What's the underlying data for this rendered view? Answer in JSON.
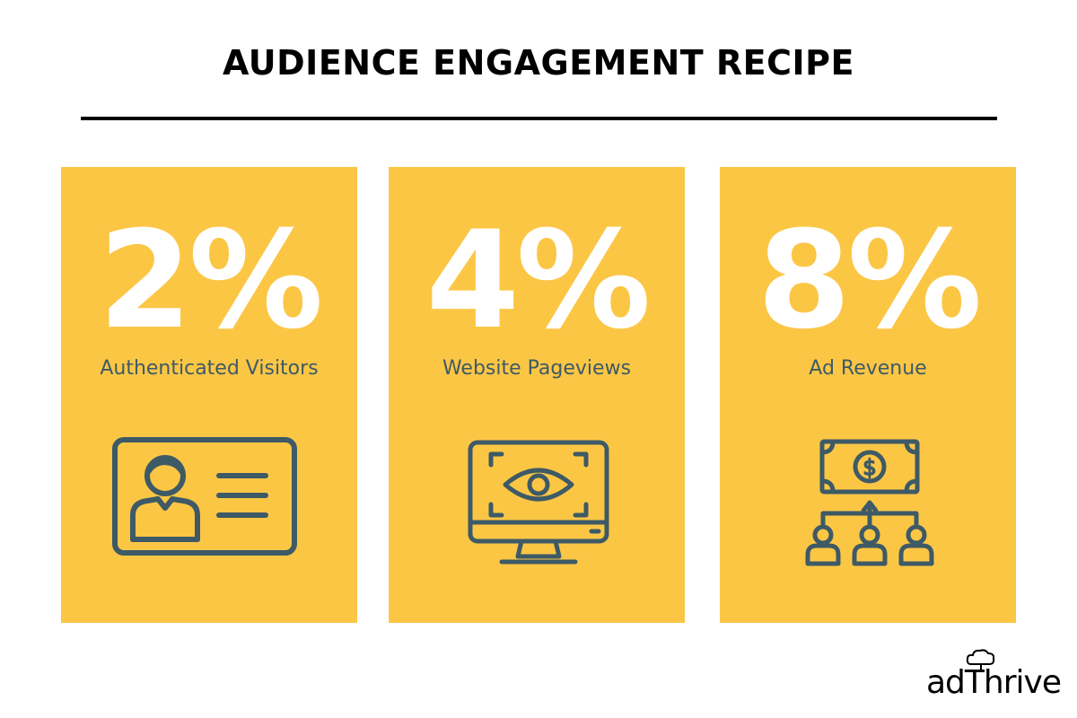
{
  "title": "AUDIENCE ENGAGEMENT RECIPE",
  "colors": {
    "card_bg": "#fcc645",
    "icon_stroke": "#3d5a66",
    "stat_text": "#ffffff"
  },
  "cards": [
    {
      "stat": "2%",
      "label": "Authenticated Visitors",
      "icon": "id-card-icon"
    },
    {
      "stat": "4%",
      "label": "Website Pageviews",
      "icon": "monitor-eye-icon"
    },
    {
      "stat": "8%",
      "label": "Ad Revenue",
      "icon": "money-audience-icon"
    }
  ],
  "logo": {
    "text": "adThrive",
    "icon": "tree-icon"
  }
}
